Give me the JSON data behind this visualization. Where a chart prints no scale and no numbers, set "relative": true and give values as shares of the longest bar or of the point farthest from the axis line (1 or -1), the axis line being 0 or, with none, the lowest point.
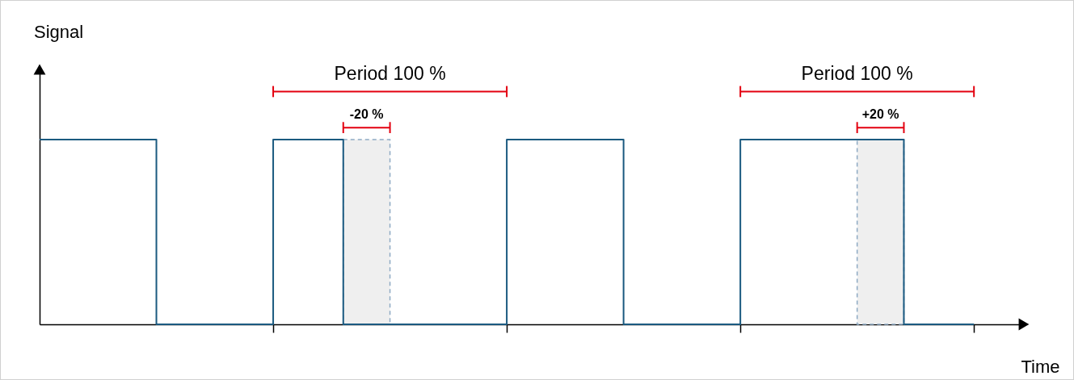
{
  "chart_data": {
    "type": "step",
    "relative": true,
    "xlabel": "Time",
    "categories": [
      null,
      null,
      null,
      null,
      null,
      null,
      null,
      null,
      null,
      null,
      null,
      null,
      null,
      null,
      null,
      null,
      null,
      null,
      null,
      null,
      null,
      null,
      null,
      null,
      null,
      null,
      null,
      null,
      null,
      null,
      null,
      null,
      null,
      null,
      null,
      null,
      null,
      null,
      null,
      null,
      null,
      null,
      null
    ],
    "series": [
      {
        "type": "area",
        "color": "#efefef",
        "line_style": "dashed",
        "values": [
          null,
          null,
          null,
          null,
          null,
          null,
          null,
          null,
          null,
          null,
          null,
          null,
          null,
          1,
          1,
          1,
          null,
          null,
          null,
          null,
          null,
          null,
          null,
          null,
          null,
          null,
          null,
          null,
          null,
          null,
          null,
          null,
          null,
          null,
          null,
          null,
          null,
          null,
          null,
          null,
          null,
          null,
          null
        ]
      },
      {
        "type": "area",
        "color": "#efefef",
        "line_style": "dashed",
        "values": [
          null,
          null,
          null,
          null,
          null,
          null,
          null,
          null,
          null,
          null,
          null,
          null,
          null,
          null,
          null,
          null,
          null,
          null,
          null,
          null,
          null,
          null,
          null,
          null,
          null,
          null,
          null,
          null,
          null,
          null,
          null,
          null,
          null,
          null,
          null,
          1,
          1,
          1,
          null,
          null,
          null,
          null,
          null
        ]
      },
      {
        "color": "#1b5a80",
        "values": [
          1,
          1,
          1,
          1,
          1,
          0,
          0,
          0,
          0,
          0,
          1,
          1,
          1,
          0,
          0,
          0,
          0,
          0,
          0,
          0,
          1,
          1,
          1,
          1,
          1,
          0,
          0,
          0,
          0,
          0,
          1,
          1,
          1,
          1,
          1,
          1,
          1,
          0,
          0,
          0,
          0,
          null,
          null
        ]
      }
    ],
    "annotations": [
      "Signal",
      "Period 100 %",
      "-20 %",
      "Period 100 %",
      "+20 %"
    ]
  }
}
